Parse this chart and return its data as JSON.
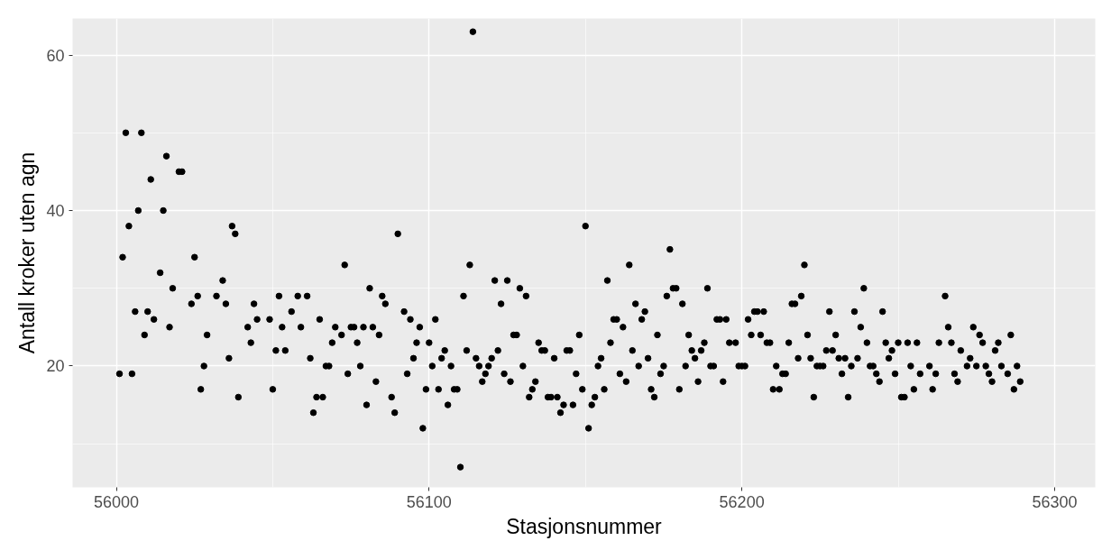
{
  "chart_data": {
    "type": "scatter",
    "xlabel": "Stasjonsnummer",
    "ylabel": "Antall kroker uten agn",
    "xlim": [
      55986,
      56313
    ],
    "ylim": [
      4.4,
      64.7
    ],
    "xticks": [
      56000,
      56100,
      56200,
      56300
    ],
    "yticks": [
      20,
      40,
      60
    ],
    "grid": true,
    "marker": "circle",
    "series": [
      {
        "color": "#000000",
        "x": [
          56001,
          56002,
          56003,
          56004,
          56005,
          56006,
          56007,
          56008,
          56009,
          56010,
          56011,
          56012,
          56014,
          56015,
          56016,
          56017,
          56018,
          56020,
          56021,
          56024,
          56025,
          56026,
          56027,
          56028,
          56029,
          56032,
          56034,
          56035,
          56036,
          56037,
          56038,
          56039,
          56042,
          56043,
          56044,
          56045,
          56049,
          56050,
          56051,
          56052,
          56053,
          56054,
          56056,
          56058,
          56059,
          56061,
          56062,
          56063,
          56064,
          56065,
          56066,
          56067,
          56068,
          56069,
          56070,
          56072,
          56073,
          56074,
          56075,
          56076,
          56077,
          56078,
          56079,
          56080,
          56081,
          56082,
          56083,
          56084,
          56085,
          56086,
          56088,
          56089,
          56090,
          56092,
          56093,
          56094,
          56095,
          56096,
          56097,
          56098,
          56099,
          56100,
          56101,
          56102,
          56103,
          56104,
          56105,
          56106,
          56107,
          56108,
          56109,
          56110,
          56111,
          56112,
          56113,
          56114,
          56115,
          56116,
          56117,
          56118,
          56119,
          56120,
          56121,
          56122,
          56123,
          56124,
          56125,
          56126,
          56127,
          56128,
          56129,
          56130,
          56131,
          56132,
          56133,
          56134,
          56135,
          56136,
          56137,
          56138,
          56139,
          56140,
          56141,
          56142,
          56143,
          56144,
          56145,
          56146,
          56147,
          56148,
          56149,
          56150,
          56151,
          56152,
          56153,
          56154,
          56155,
          56156,
          56157,
          56158,
          56159,
          56160,
          56161,
          56162,
          56163,
          56164,
          56165,
          56166,
          56167,
          56168,
          56169,
          56170,
          56171,
          56172,
          56173,
          56174,
          56175,
          56176,
          56177,
          56178,
          56179,
          56180,
          56181,
          56182,
          56183,
          56184,
          56185,
          56186,
          56187,
          56188,
          56189,
          56190,
          56191,
          56192,
          56193,
          56194,
          56195,
          56196,
          56198,
          56199,
          56200,
          56201,
          56202,
          56203,
          56204,
          56205,
          56206,
          56207,
          56208,
          56209,
          56210,
          56211,
          56212,
          56213,
          56214,
          56215,
          56216,
          56217,
          56218,
          56219,
          56220,
          56221,
          56222,
          56223,
          56224,
          56225,
          56226,
          56227,
          56228,
          56229,
          56230,
          56231,
          56232,
          56233,
          56234,
          56235,
          56236,
          56237,
          56238,
          56239,
          56240,
          56241,
          56242,
          56243,
          56244,
          56245,
          56246,
          56247,
          56248,
          56249,
          56250,
          56251,
          56252,
          56253,
          56254,
          56255,
          56256,
          56257,
          56260,
          56261,
          56262,
          56263,
          56265,
          56266,
          56267,
          56268,
          56269,
          56270,
          56272,
          56273,
          56274,
          56275,
          56276,
          56277,
          56278,
          56279,
          56280,
          56281,
          56282,
          56283,
          56285,
          56286,
          56287,
          56288,
          56289
        ],
        "values": [
          19,
          34,
          50,
          38,
          19,
          27,
          40,
          50,
          24,
          27,
          44,
          26,
          32,
          40,
          47,
          25,
          30,
          45,
          45,
          28,
          34,
          29,
          17,
          20,
          24,
          29,
          31,
          28,
          21,
          38,
          37,
          16,
          25,
          23,
          28,
          26,
          26,
          17,
          22,
          29,
          25,
          22,
          27,
          29,
          25,
          29,
          21,
          14,
          16,
          26,
          16,
          20,
          20,
          23,
          25,
          24,
          33,
          19,
          25,
          25,
          23,
          20,
          25,
          15,
          30,
          25,
          18,
          24,
          29,
          28,
          16,
          14,
          37,
          27,
          19,
          26,
          21,
          23,
          25,
          12,
          17,
          23,
          20,
          26,
          17,
          21,
          22,
          15,
          20,
          17,
          17,
          7,
          29,
          22,
          33,
          63,
          21,
          20,
          18,
          19,
          20,
          21,
          31,
          22,
          28,
          19,
          31,
          18,
          24,
          24,
          30,
          20,
          29,
          16,
          17,
          18,
          23,
          22,
          22,
          16,
          16,
          21,
          16,
          14,
          15,
          22,
          22,
          15,
          19,
          24,
          17,
          38,
          12,
          15,
          16,
          20,
          21,
          17,
          31,
          23,
          26,
          26,
          19,
          25,
          18,
          33,
          22,
          28,
          20,
          26,
          27,
          21,
          17,
          16,
          24,
          19,
          20,
          29,
          35,
          30,
          30,
          17,
          28,
          20,
          24,
          22,
          21,
          18,
          22,
          23,
          30,
          20,
          20,
          26,
          26,
          18,
          26,
          23,
          23,
          20,
          20,
          20,
          26,
          24,
          27,
          27,
          24,
          27,
          23,
          23,
          17,
          20,
          17,
          19,
          19,
          23,
          28,
          28,
          21,
          29,
          33,
          24,
          21,
          16,
          20,
          20,
          20,
          22,
          27,
          22,
          24,
          21,
          19,
          21,
          16,
          20,
          27,
          21,
          25,
          30,
          23,
          20,
          20,
          19,
          18,
          27,
          23,
          21,
          22,
          19,
          23,
          16,
          16,
          23,
          20,
          17,
          23,
          19,
          20,
          17,
          19,
          23,
          29,
          25,
          23,
          19,
          18,
          22,
          20,
          21,
          25,
          20,
          24,
          23,
          20,
          19,
          18,
          22,
          23,
          20,
          19,
          24,
          17,
          20,
          18
        ]
      }
    ]
  }
}
